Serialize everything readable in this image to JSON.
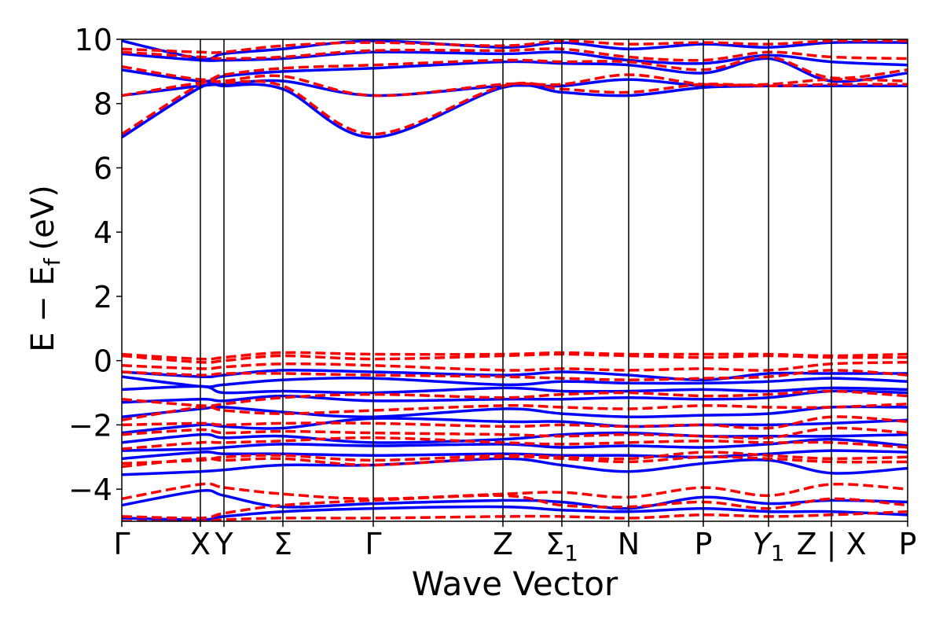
{
  "chart_data": {
    "type": "line",
    "title": "",
    "xlabel": "Wave Vector",
    "ylabel": "E − E",
    "ylabel_subscript": "f",
    "ylabel_unit": "(eV)",
    "ylim": [
      -5,
      10
    ],
    "yticks": [
      -4,
      -2,
      0,
      2,
      4,
      6,
      8,
      10
    ],
    "ytick_labels": [
      "−4",
      "−2",
      "0",
      "2",
      "4",
      "6",
      "8",
      "10"
    ],
    "x_kpoints": [
      {
        "label": "Γ",
        "x": 0.0
      },
      {
        "label": "X",
        "x": 1.0
      },
      {
        "label": "Y",
        "x": 1.3
      },
      {
        "label": "Σ",
        "x": 2.05
      },
      {
        "label": "Γ",
        "x": 3.2
      },
      {
        "label": "Z",
        "x": 4.85
      },
      {
        "label": "Σ",
        "sub": "1",
        "x": 5.6
      },
      {
        "label": "N",
        "x": 6.45
      },
      {
        "label": "P",
        "x": 7.4
      },
      {
        "label": "Y",
        "sub": "1",
        "x": 8.23
      },
      {
        "label": "Z | X",
        "x": 9.03
      },
      {
        "label": "P",
        "x": 10.0
      }
    ],
    "xlim": [
      0,
      10
    ],
    "grid": false,
    "legend": "none",
    "series": [
      {
        "style": "solid",
        "color": "#0000ff",
        "x": [
          0,
          1.0,
          1.3,
          2.05,
          3.2,
          4.85,
          5.6,
          6.45,
          7.4,
          8.23,
          9.03,
          10.0
        ],
        "bands": [
          [
            6.95,
            8.5,
            8.55,
            8.45,
            6.95,
            8.5,
            8.35,
            8.25,
            8.5,
            8.55,
            8.55,
            8.55
          ],
          [
            8.25,
            8.55,
            8.6,
            8.7,
            8.25,
            8.55,
            8.55,
            8.75,
            8.55,
            8.55,
            8.55,
            8.55
          ],
          [
            9.05,
            8.7,
            8.85,
            9.0,
            9.1,
            9.3,
            9.25,
            9.2,
            8.95,
            9.4,
            8.7,
            8.95
          ],
          [
            9.55,
            9.35,
            9.35,
            9.4,
            9.6,
            9.55,
            9.6,
            9.35,
            9.25,
            9.5,
            9.3,
            9.2
          ],
          [
            9.95,
            9.4,
            9.55,
            9.7,
            9.95,
            9.75,
            9.9,
            9.7,
            9.85,
            9.75,
            9.9,
            9.9
          ],
          [
            -0.35,
            -0.5,
            -0.45,
            -0.3,
            -0.35,
            -0.45,
            -0.35,
            -0.45,
            -0.6,
            -0.4,
            -0.4,
            -0.4
          ],
          [
            -0.5,
            -0.8,
            -0.75,
            -0.6,
            -0.55,
            -0.75,
            -0.65,
            -0.7,
            -0.7,
            -0.65,
            -0.55,
            -0.65
          ],
          [
            -0.9,
            -0.8,
            -1.0,
            -0.95,
            -1.0,
            -0.85,
            -0.95,
            -0.95,
            -0.9,
            -0.95,
            -0.85,
            -0.9
          ],
          [
            -1.3,
            -1.2,
            -1.25,
            -1.1,
            -1.25,
            -1.2,
            -1.2,
            -1.15,
            -1.2,
            -1.15,
            -0.95,
            -1.0
          ],
          [
            -1.75,
            -1.5,
            -1.45,
            -1.6,
            -1.75,
            -1.5,
            -1.65,
            -1.75,
            -1.7,
            -1.65,
            -1.45,
            -1.45
          ],
          [
            -2.25,
            -2.0,
            -2.05,
            -2.1,
            -1.8,
            -1.9,
            -1.9,
            -2.05,
            -2.0,
            -2.0,
            -1.95,
            -1.85
          ],
          [
            -2.55,
            -2.3,
            -2.4,
            -2.35,
            -2.55,
            -2.45,
            -2.3,
            -2.25,
            -2.35,
            -2.35,
            -2.35,
            -2.3
          ],
          [
            -2.8,
            -2.75,
            -2.7,
            -2.6,
            -2.65,
            -2.6,
            -2.7,
            -2.65,
            -2.7,
            -2.6,
            -2.45,
            -2.65
          ],
          [
            -3.05,
            -2.85,
            -2.9,
            -2.9,
            -2.95,
            -2.9,
            -2.95,
            -2.95,
            -3.0,
            -2.9,
            -2.8,
            -2.85
          ],
          [
            -3.55,
            -3.45,
            -3.4,
            -3.25,
            -3.25,
            -3.05,
            -3.25,
            -3.45,
            -3.2,
            -3.1,
            -3.5,
            -3.35
          ],
          [
            -4.5,
            -4.05,
            -4.2,
            -4.55,
            -4.45,
            -4.35,
            -4.4,
            -4.6,
            -4.25,
            -4.45,
            -4.35,
            -4.4
          ],
          [
            -4.9,
            -4.95,
            -4.85,
            -4.7,
            -4.6,
            -4.55,
            -4.65,
            -4.7,
            -4.6,
            -4.7,
            -4.7,
            -4.8
          ]
        ]
      },
      {
        "style": "dashed",
        "color": "#ff0000",
        "x": [
          0,
          1.0,
          1.3,
          2.05,
          3.2,
          4.85,
          5.6,
          6.45,
          7.4,
          8.23,
          9.03,
          10.0
        ],
        "bands": [
          [
            7.05,
            8.6,
            8.65,
            8.55,
            7.05,
            8.55,
            8.45,
            8.35,
            8.6,
            8.55,
            8.6,
            8.6
          ],
          [
            8.25,
            8.65,
            8.7,
            8.85,
            8.25,
            8.6,
            8.6,
            8.9,
            8.6,
            8.6,
            8.75,
            8.7
          ],
          [
            9.15,
            8.75,
            8.9,
            9.1,
            9.2,
            9.35,
            9.3,
            9.3,
            9.05,
            9.45,
            8.8,
            9.05
          ],
          [
            9.6,
            9.45,
            9.4,
            9.45,
            9.65,
            9.65,
            9.7,
            9.45,
            9.35,
            9.6,
            9.45,
            9.4
          ],
          [
            9.7,
            9.6,
            9.6,
            9.8,
            9.9,
            9.8,
            9.95,
            9.85,
            9.9,
            9.85,
            9.95,
            9.95
          ],
          [
            0.2,
            0.05,
            0.1,
            0.25,
            0.2,
            0.2,
            0.25,
            0.2,
            0.2,
            0.2,
            0.15,
            0.2
          ],
          [
            0.15,
            -0.05,
            0.0,
            0.15,
            0.05,
            0.15,
            0.2,
            0.15,
            0.1,
            0.15,
            0.1,
            0.1
          ],
          [
            -0.15,
            -0.25,
            -0.2,
            -0.1,
            -0.15,
            -0.3,
            -0.25,
            -0.3,
            -0.25,
            -0.3,
            -0.1,
            -0.05
          ],
          [
            -0.35,
            -0.45,
            -0.4,
            -0.4,
            -0.45,
            -0.5,
            -0.55,
            -0.6,
            -0.55,
            -0.5,
            -0.3,
            -0.45
          ],
          [
            -1.2,
            -1.4,
            -1.35,
            -1.15,
            -1.05,
            -1.15,
            -1.05,
            -1.0,
            -1.1,
            -1.05,
            -0.95,
            -1.1
          ],
          [
            -1.85,
            -1.45,
            -1.55,
            -1.65,
            -1.55,
            -1.4,
            -1.45,
            -1.5,
            -1.4,
            -1.45,
            -1.45,
            -1.35
          ],
          [
            -2.0,
            -1.95,
            -2.0,
            -1.95,
            -1.95,
            -2.05,
            -2.0,
            -2.05,
            -2.0,
            -2.1,
            -1.75,
            -1.9
          ],
          [
            -2.3,
            -2.15,
            -2.25,
            -2.2,
            -2.25,
            -2.3,
            -2.35,
            -2.3,
            -2.35,
            -2.4,
            -2.1,
            -2.25
          ],
          [
            -2.75,
            -2.55,
            -2.55,
            -2.5,
            -2.4,
            -2.55,
            -2.6,
            -2.55,
            -2.5,
            -2.55,
            -2.55,
            -2.7
          ],
          [
            -3.2,
            -3.1,
            -3.0,
            -2.95,
            -3.1,
            -2.95,
            -3.0,
            -3.05,
            -2.85,
            -2.95,
            -3.05,
            -3.0
          ],
          [
            -3.3,
            -3.05,
            -3.1,
            -3.05,
            -3.25,
            -3.0,
            -3.05,
            -3.15,
            -3.0,
            -3.05,
            -3.15,
            -3.15
          ],
          [
            -4.3,
            -3.85,
            -3.95,
            -4.15,
            -4.3,
            -4.15,
            -4.1,
            -4.25,
            -3.95,
            -4.2,
            -3.85,
            -4.0
          ],
          [
            -4.85,
            -4.9,
            -4.75,
            -4.5,
            -4.35,
            -4.2,
            -4.5,
            -4.55,
            -4.4,
            -4.6,
            -4.3,
            -4.5
          ],
          [
            -5.0,
            -5.0,
            -4.95,
            -4.9,
            -4.9,
            -4.85,
            -4.85,
            -4.9,
            -4.8,
            -4.85,
            -4.8,
            -4.7
          ]
        ]
      }
    ]
  }
}
